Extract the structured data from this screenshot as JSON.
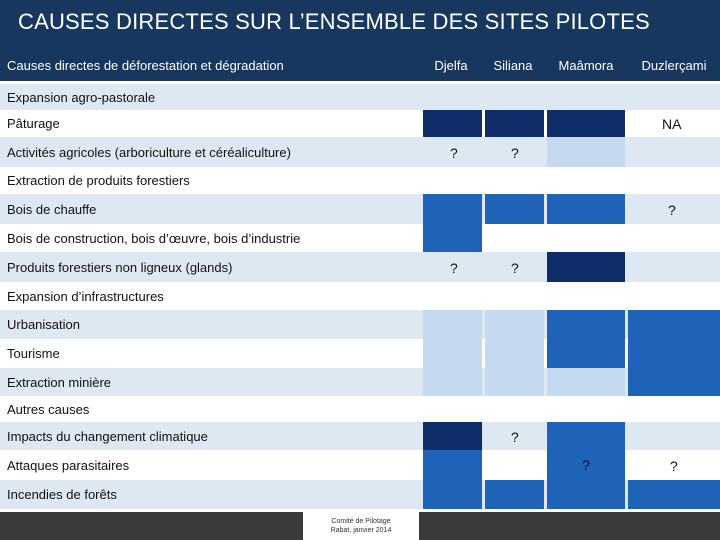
{
  "title": "CAUSES DIRECTES SUR L’ENSEMBLE DES SITES PILOTES",
  "header": {
    "first": "Causes directes de déforestation et dégradation",
    "sites": [
      "Djelfa",
      "Siliana",
      "Maâmora",
      "Duzlerçami"
    ]
  },
  "sections": {
    "agro": "Expansion agro-pastorale",
    "forest": "Extraction de produits forestiers",
    "infra": "Expansion d’infrastructures",
    "other": "Autres causes"
  },
  "rows": {
    "paturage": {
      "label": "Pâturage",
      "note": "NA"
    },
    "agri": {
      "label": "Activités agricoles (arboriculture et céréaliculture)",
      "q_djelfa": "?",
      "q_siliana": "?"
    },
    "bois": {
      "label": "Bois de chauffe",
      "q_duz": "?"
    },
    "construction": {
      "label": "Bois de construction, bois d’œuvre, bois d’industrie"
    },
    "pfnl": {
      "label": "Produits forestiers non ligneux (glands)",
      "q_djelfa": "?",
      "q_siliana": "?"
    },
    "urban": {
      "label": "Urbanisation"
    },
    "tourisme": {
      "label": "Tourisme"
    },
    "mine": {
      "label": "Extraction minière"
    },
    "climat": {
      "label": "Impacts du changement climatique",
      "q_siliana": "?"
    },
    "parasites": {
      "label": "Attaques parasitaires",
      "q_maamora": "?",
      "q_duz": "?"
    },
    "incendies": {
      "label": "Incendies de forêts"
    }
  },
  "colors": {
    "dark": "#0f2d69",
    "mid": "#1f63b9",
    "light": "#c5d9f1",
    "stripe": "#dde8f3",
    "white": "#ffffff",
    "header": "#17375e"
  },
  "footer": {
    "line1": "Comité de Pilotage",
    "line2": "Rabat, janvier 2014"
  }
}
